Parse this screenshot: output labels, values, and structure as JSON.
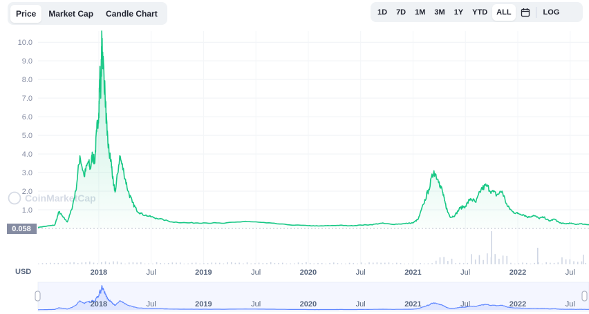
{
  "tabs": [
    {
      "label": "Price",
      "active": true
    },
    {
      "label": "Market Cap",
      "active": false
    },
    {
      "label": "Candle Chart",
      "active": false
    }
  ],
  "ranges": [
    {
      "label": "1D",
      "active": false
    },
    {
      "label": "7D",
      "active": false
    },
    {
      "label": "1M",
      "active": false
    },
    {
      "label": "3M",
      "active": false
    },
    {
      "label": "1Y",
      "active": false
    },
    {
      "label": "YTD",
      "active": false
    },
    {
      "label": "ALL",
      "active": true
    }
  ],
  "calendar_icon": "calendar-icon",
  "log_label": "LOG",
  "watermark": "CoinMarketCap",
  "colors": {
    "line": "#16c784",
    "fill_top": "#16c784",
    "nav_line": "#6188ff",
    "nav_fill": "#e8edff",
    "current_badge": "#858ca2",
    "grid": "#eff2f5"
  },
  "chart_data": {
    "type": "area",
    "currency_label": "USD",
    "current_price_label": "0.058",
    "yticks": [
      "1.0",
      "2.0",
      "3.0",
      "4.0",
      "5.0",
      "6.0",
      "7.0",
      "8.0",
      "9.0",
      "10.0"
    ],
    "xticks": [
      {
        "label": "2018",
        "year": true,
        "t": 2018.0
      },
      {
        "label": "Jul",
        "year": false,
        "t": 2018.5
      },
      {
        "label": "2019",
        "year": true,
        "t": 2019.0
      },
      {
        "label": "Jul",
        "year": false,
        "t": 2019.5
      },
      {
        "label": "2020",
        "year": true,
        "t": 2020.0
      },
      {
        "label": "Jul",
        "year": false,
        "t": 2020.5
      },
      {
        "label": "2021",
        "year": true,
        "t": 2021.0
      },
      {
        "label": "Jul",
        "year": false,
        "t": 2021.5
      },
      {
        "label": "2022",
        "year": true,
        "t": 2022.0
      },
      {
        "label": "Jul",
        "year": false,
        "t": 2022.5
      }
    ],
    "x_range": [
      2017.42,
      2022.68
    ],
    "series": [
      {
        "x": [
          2017.42,
          2017.5,
          2017.58,
          2017.62,
          2017.66,
          2017.7,
          2017.74,
          2017.78,
          2017.82,
          2017.86,
          2017.9,
          2017.92,
          2017.94,
          2017.96,
          2017.98,
          2018.0,
          2018.01,
          2018.02,
          2018.03,
          2018.04,
          2018.06,
          2018.08,
          2018.1,
          2018.12,
          2018.14,
          2018.16,
          2018.2,
          2018.24,
          2018.28,
          2018.32,
          2018.36,
          2018.4,
          2018.48,
          2018.55,
          2018.7,
          2018.85,
          2019.0,
          2019.2,
          2019.4,
          2019.6,
          2019.8,
          2020.0,
          2020.1,
          2020.2,
          2020.3,
          2020.4,
          2020.5,
          2020.6,
          2020.7,
          2020.8,
          2020.9,
          2021.0,
          2021.05,
          2021.1,
          2021.15,
          2021.2,
          2021.25,
          2021.28,
          2021.3,
          2021.33,
          2021.36,
          2021.4,
          2021.45,
          2021.5,
          2021.55,
          2021.6,
          2021.65,
          2021.7,
          2021.75,
          2021.8,
          2021.85,
          2021.9,
          2021.95,
          2022.0,
          2022.05,
          2022.1,
          2022.15,
          2022.2,
          2022.25,
          2022.3,
          2022.35,
          2022.4,
          2022.45,
          2022.5,
          2022.55,
          2022.6,
          2022.68
        ],
        "y": [
          0.058,
          0.12,
          0.18,
          0.9,
          0.6,
          0.35,
          1.0,
          2.0,
          3.9,
          2.8,
          3.6,
          3.2,
          4.0,
          3.5,
          5.2,
          6.2,
          8.3,
          7.5,
          10.2,
          9.1,
          7.2,
          5.0,
          4.0,
          3.5,
          2.3,
          2.0,
          3.9,
          3.0,
          2.0,
          1.4,
          1.0,
          0.8,
          0.65,
          0.55,
          0.35,
          0.3,
          0.3,
          0.28,
          0.38,
          0.3,
          0.2,
          0.15,
          0.13,
          0.15,
          0.17,
          0.14,
          0.18,
          0.2,
          0.28,
          0.22,
          0.25,
          0.3,
          0.5,
          1.3,
          2.1,
          3.1,
          2.5,
          2.0,
          1.5,
          0.9,
          0.6,
          0.7,
          1.1,
          1.2,
          1.6,
          1.4,
          2.1,
          2.3,
          2.0,
          1.8,
          2.0,
          1.2,
          0.9,
          0.8,
          0.75,
          0.6,
          0.7,
          0.55,
          0.6,
          0.4,
          0.5,
          0.3,
          0.25,
          0.28,
          0.22,
          0.25,
          0.2
        ]
      }
    ],
    "volume_range": [
      0,
      1
    ],
    "grid": true
  }
}
